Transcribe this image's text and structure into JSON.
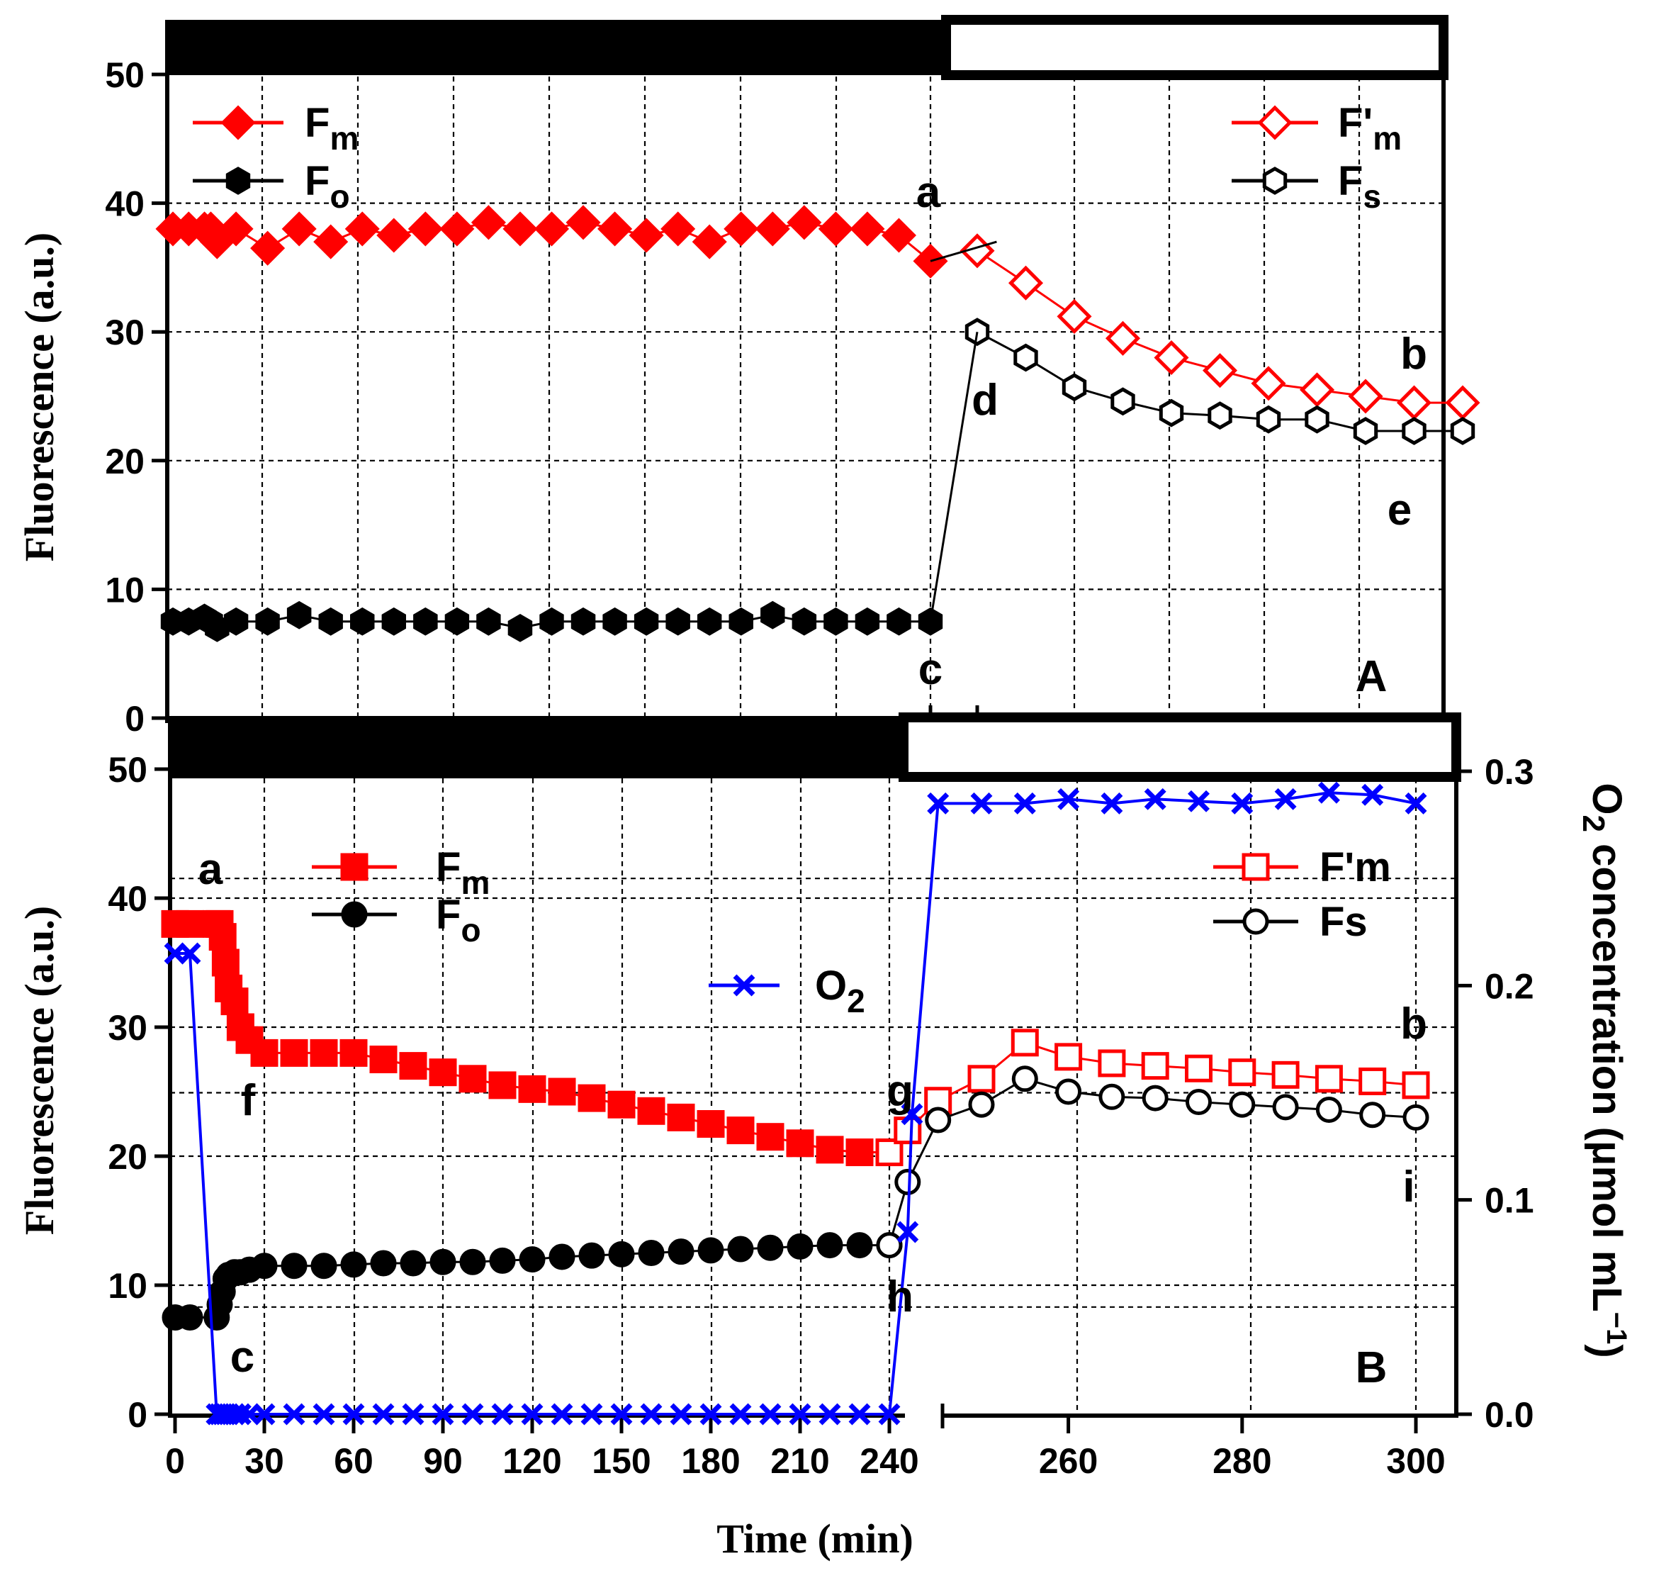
{
  "chart_data": [
    {
      "panel": "A",
      "type": "line",
      "xlabel": "",
      "ylabel": "Fluorescence (a.u.)",
      "ylim": [
        0,
        50
      ],
      "yticks": [
        "0",
        "10",
        "20",
        "30",
        "40",
        "50"
      ],
      "light_bar": {
        "dark_until": 240,
        "light_from": 240
      },
      "panel_label": "A",
      "legend_left": [
        {
          "main": "F",
          "sub": "m",
          "prime": ""
        },
        {
          "main": "F",
          "sub": "o",
          "prime": ""
        }
      ],
      "legend_right": [
        {
          "main": "F",
          "sub": "m",
          "prime": "'"
        },
        {
          "main": "F",
          "sub": "s",
          "prime": ""
        }
      ],
      "annotations": [
        "a",
        "b",
        "c",
        "d",
        "e"
      ],
      "series": [
        {
          "name": "Fm",
          "color": "#ff0000",
          "marker": "diamond",
          "filled": true,
          "x": [
            0,
            5,
            10,
            12,
            14,
            20,
            30,
            40,
            50,
            60,
            70,
            80,
            90,
            100,
            110,
            120,
            130,
            140,
            150,
            160,
            170,
            180,
            190,
            200,
            210,
            220,
            230,
            240
          ],
          "y": [
            38,
            38,
            38,
            38,
            37,
            38,
            36.5,
            38,
            37,
            38,
            37.5,
            38,
            38,
            38.5,
            38,
            38,
            38.5,
            38,
            37.5,
            38,
            37,
            38,
            38,
            38.5,
            38,
            38,
            37.5,
            35.5
          ]
        },
        {
          "name": "Fo",
          "color": "#000000",
          "marker": "hexagon",
          "filled": true,
          "x": [
            0,
            5,
            10,
            12,
            14,
            20,
            30,
            40,
            50,
            60,
            70,
            80,
            90,
            100,
            110,
            120,
            130,
            140,
            150,
            160,
            170,
            180,
            190,
            200,
            210,
            220,
            230,
            240
          ],
          "y": [
            7.5,
            7.5,
            7.8,
            7.5,
            7,
            7.5,
            7.5,
            8,
            7.5,
            7.5,
            7.5,
            7.5,
            7.5,
            7.5,
            7,
            7.5,
            7.5,
            7.5,
            7.5,
            7.5,
            7.5,
            7.5,
            8,
            7.5,
            7.5,
            7.5,
            7.5,
            7.5
          ]
        },
        {
          "name": "F'm",
          "color": "#ff0000",
          "marker": "diamond",
          "filled": false,
          "x": [
            245,
            250,
            255,
            260,
            265,
            270,
            275,
            280,
            285,
            290,
            295
          ],
          "y": [
            36.3,
            33.8,
            31.2,
            29.5,
            28,
            27,
            26,
            25.5,
            25,
            24.5,
            24.5
          ]
        },
        {
          "name": "Fs",
          "color": "#000000",
          "marker": "hexagon",
          "filled": false,
          "x": [
            245,
            250,
            255,
            260,
            265,
            270,
            275,
            280,
            285,
            290,
            295
          ],
          "y": [
            30,
            28,
            25.7,
            24.6,
            23.7,
            23.5,
            23.2,
            23.2,
            22.3,
            22.3,
            22.3
          ]
        }
      ]
    },
    {
      "panel": "B",
      "type": "line",
      "xlabel": "Time (min)",
      "ylabel": "Fluorescence (a.u.)",
      "y2label_parts": [
        "O",
        "2",
        " concentration (",
        "μ",
        "mol mL",
        "−1",
        ")"
      ],
      "ylim": [
        0,
        50
      ],
      "y2lim": [
        0,
        0.3
      ],
      "yticks": [
        "0",
        "10",
        "20",
        "30",
        "40",
        "50"
      ],
      "y2ticks": [
        "0.0",
        "0.1",
        "0.2",
        "0.3"
      ],
      "xticks": [
        "0",
        "30",
        "60",
        "90",
        "120",
        "150",
        "180",
        "210",
        "240",
        "260",
        "280",
        "300"
      ],
      "x_break": "240 (dark, 0–240 min) | 240–300 (light, expanded scale)",
      "light_bar": {
        "dark_until": 240,
        "light_from": 240
      },
      "panel_label": "B",
      "legend_left": [
        {
          "main": "F",
          "sub": "m",
          "prime": ""
        },
        {
          "main": "F",
          "sub": "o",
          "prime": ""
        }
      ],
      "legend_o2": {
        "main": "O",
        "sub": "2"
      },
      "legend_right": [
        {
          "main": "F'm",
          "sub": "",
          "prime": ""
        },
        {
          "main": "Fs",
          "sub": "",
          "prime": ""
        }
      ],
      "annotations": [
        "a",
        "f",
        "c",
        "g",
        "h",
        "b",
        "i"
      ],
      "series": [
        {
          "name": "Fm",
          "color": "#ff0000",
          "marker": "square",
          "filled": true,
          "x": [
            0,
            5,
            14,
            15,
            16,
            17,
            18,
            20,
            22,
            25,
            30,
            40,
            50,
            60,
            70,
            80,
            90,
            100,
            110,
            120,
            130,
            140,
            150,
            160,
            170,
            180,
            190,
            200,
            210,
            220,
            230,
            240
          ],
          "y": [
            38,
            38,
            38,
            38,
            37,
            35,
            33,
            32,
            30,
            29,
            28,
            28,
            28,
            28,
            27.5,
            27,
            26.5,
            26,
            25.5,
            25.2,
            25,
            24.5,
            24,
            23.5,
            23,
            22.5,
            22,
            21.5,
            21,
            20.5,
            20.3,
            20.3
          ]
        },
        {
          "name": "Fo",
          "color": "#000000",
          "marker": "circle",
          "filled": true,
          "x": [
            0,
            5,
            14,
            15,
            16,
            17,
            18,
            20,
            22,
            25,
            30,
            40,
            50,
            60,
            70,
            80,
            90,
            100,
            110,
            120,
            130,
            140,
            150,
            160,
            170,
            180,
            190,
            200,
            210,
            220,
            230,
            240
          ],
          "y": [
            7.5,
            7.5,
            7.5,
            8.5,
            9.5,
            10.5,
            10.8,
            11,
            11,
            11.2,
            11.5,
            11.5,
            11.5,
            11.6,
            11.7,
            11.7,
            11.8,
            11.8,
            11.9,
            12,
            12.2,
            12.3,
            12.4,
            12.5,
            12.6,
            12.7,
            12.8,
            12.9,
            13,
            13.1,
            13.1,
            13.1
          ]
        },
        {
          "name": "F'm",
          "color": "#ff0000",
          "marker": "square",
          "filled": false,
          "x": [
            240,
            241.5,
            245,
            250,
            255,
            260,
            265,
            270,
            275,
            280,
            285,
            290,
            295,
            300
          ],
          "y": [
            20.3,
            22,
            24.3,
            26,
            28.8,
            27.7,
            27.2,
            27,
            26.8,
            26.5,
            26.3,
            26,
            25.8,
            25.5
          ]
        },
        {
          "name": "Fs",
          "color": "#000000",
          "marker": "circle",
          "filled": false,
          "x": [
            240,
            241.5,
            245,
            250,
            255,
            260,
            265,
            270,
            275,
            280,
            285,
            290,
            295,
            300
          ],
          "y": [
            13.1,
            18,
            22.8,
            24,
            26,
            25,
            24.6,
            24.5,
            24.2,
            24,
            23.8,
            23.6,
            23.2,
            23
          ]
        },
        {
          "name": "O2",
          "color": "#0000ff",
          "marker": "x",
          "filled": true,
          "axis": "y2",
          "x": [
            0,
            5,
            14,
            15,
            16,
            17,
            18,
            20,
            22,
            25,
            30,
            40,
            50,
            60,
            70,
            80,
            90,
            100,
            110,
            120,
            130,
            140,
            150,
            160,
            170,
            180,
            190,
            200,
            210,
            220,
            230,
            240,
            241.5,
            242,
            245,
            250,
            255,
            260,
            265,
            270,
            275,
            280,
            285,
            290,
            295,
            300
          ],
          "y": [
            0.215,
            0.215,
            0,
            0,
            0,
            0,
            0,
            0,
            0,
            0,
            0,
            0,
            0,
            0,
            0,
            0,
            0,
            0,
            0,
            0,
            0,
            0,
            0,
            0,
            0,
            0,
            0,
            0,
            0,
            0,
            0,
            0,
            0.085,
            0.14,
            0.285,
            0.285,
            0.285,
            0.287,
            0.285,
            0.287,
            0.286,
            0.285,
            0.287,
            0.29,
            0.289,
            0.285
          ]
        }
      ]
    }
  ]
}
